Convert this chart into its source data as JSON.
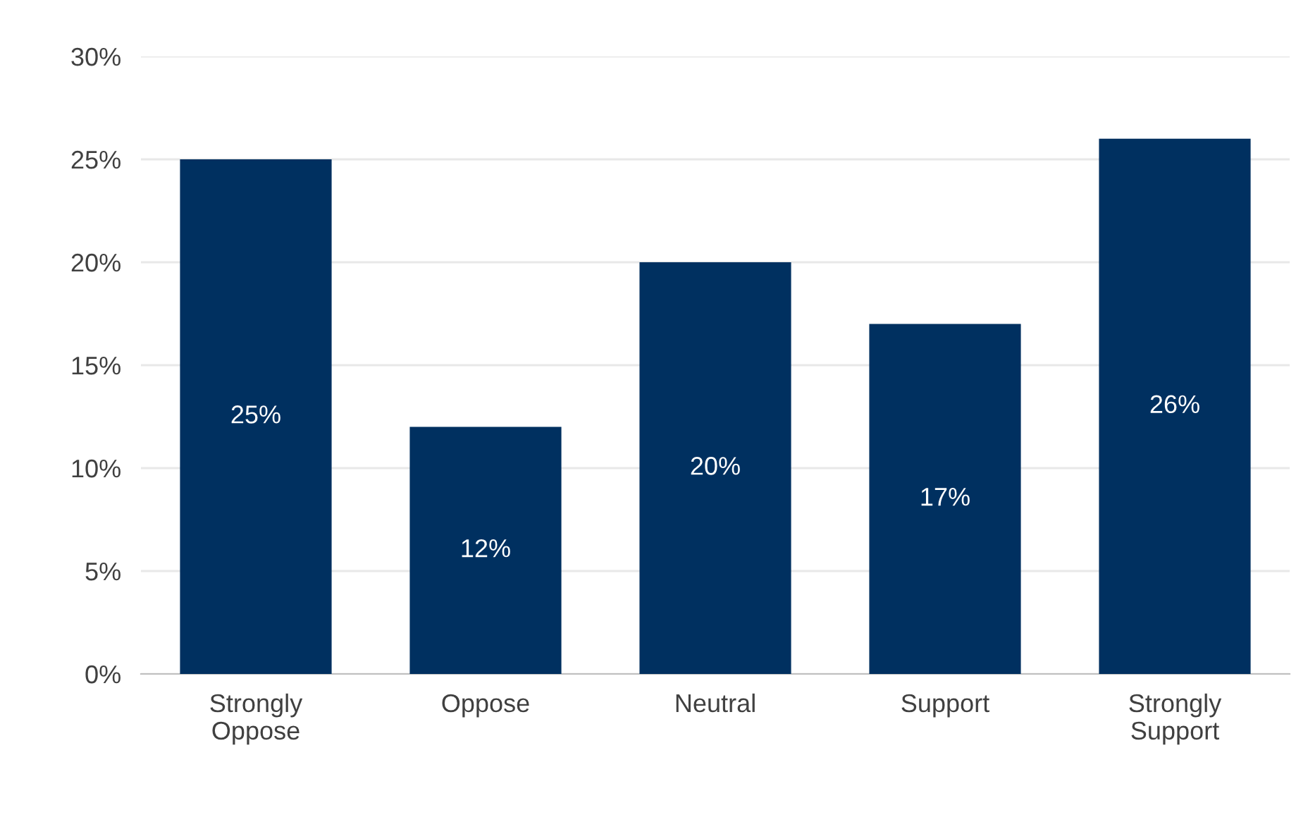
{
  "chart_data": {
    "type": "bar",
    "categories": [
      "Strongly\nOppose",
      "Oppose",
      "Neutral",
      "Support",
      "Strongly\nSupport"
    ],
    "values": [
      25,
      12,
      20,
      17,
      26
    ],
    "value_labels": [
      "25%",
      "12%",
      "20%",
      "17%",
      "26%"
    ],
    "color": "#003060",
    "ylim": [
      0,
      30
    ],
    "yticks": [
      {
        "value": 0,
        "label": "0%"
      },
      {
        "value": 5,
        "label": "5%"
      },
      {
        "value": 10,
        "label": "10%"
      },
      {
        "value": 15,
        "label": "15%"
      },
      {
        "value": 20,
        "label": "20%"
      },
      {
        "value": 25,
        "label": "25%"
      },
      {
        "value": 30,
        "label": "30%"
      }
    ],
    "grid": "y"
  }
}
